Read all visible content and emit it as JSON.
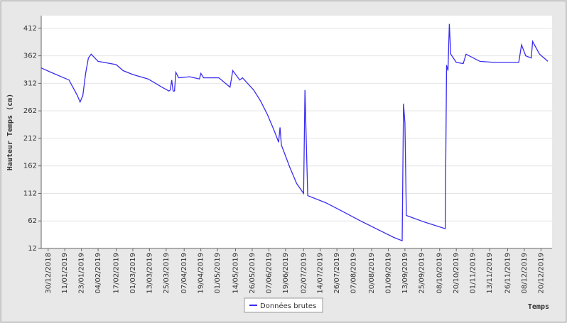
{
  "chart_data": {
    "type": "line",
    "x_label": "Temps",
    "y_label": "Hauteur Temps (cm)",
    "x": [
      "2018-12-25",
      "2019-01-01",
      "2019-01-14",
      "2019-01-20",
      "2019-01-22",
      "2019-01-24",
      "2019-01-26",
      "2019-01-28",
      "2019-01-30",
      "2019-02-04",
      "2019-02-17",
      "2019-02-22",
      "2019-03-01",
      "2019-03-12",
      "2019-03-22",
      "2019-03-27",
      "2019-03-28",
      "2019-03-29",
      "2019-03-30",
      "2019-03-31",
      "2019-04-01",
      "2019-04-03",
      "2019-04-11",
      "2019-04-18",
      "2019-04-19",
      "2019-04-21",
      "2019-05-02",
      "2019-05-10",
      "2019-05-12",
      "2019-05-17",
      "2019-05-19",
      "2019-05-27",
      "2019-06-01",
      "2019-06-06",
      "2019-06-11",
      "2019-06-14",
      "2019-06-15",
      "2019-06-16",
      "2019-06-22",
      "2019-06-27",
      "2019-07-02",
      "2019-07-03",
      "2019-07-04",
      "2019-07-05",
      "2019-07-18",
      "2019-07-28",
      "2019-08-12",
      "2019-08-28",
      "2019-09-05",
      "2019-09-11",
      "2019-09-12",
      "2019-09-13",
      "2019-09-14",
      "2019-09-27",
      "2019-10-12",
      "2019-10-13",
      "2019-10-14",
      "2019-10-15",
      "2019-10-16",
      "2019-10-20",
      "2019-10-25",
      "2019-10-27",
      "2019-11-06",
      "2019-11-16",
      "2019-11-26",
      "2019-12-04",
      "2019-12-06",
      "2019-12-09",
      "2019-12-13",
      "2019-12-14",
      "2019-12-19",
      "2019-12-25"
    ],
    "series": [
      {
        "name": "Données brutes",
        "color": "#3a2cf0",
        "values": [
          340,
          332,
          318,
          290,
          278,
          290,
          330,
          358,
          365,
          352,
          346,
          335,
          328,
          320,
          305,
          298,
          300,
          318,
          298,
          298,
          332,
          322,
          324,
          320,
          330,
          322,
          322,
          305,
          335,
          318,
          322,
          300,
          280,
          255,
          225,
          205,
          232,
          200,
          160,
          130,
          112,
          300,
          200,
          108,
          95,
          82,
          62,
          42,
          32,
          26,
          275,
          240,
          72,
          60,
          48,
          345,
          335,
          420,
          365,
          350,
          348,
          365,
          352,
          350,
          350,
          350,
          382,
          362,
          358,
          388,
          365,
          352
        ]
      }
    ],
    "xlim": [
      "2018-12-25",
      "2019-12-28"
    ],
    "xticks": [
      {
        "value": "2018-12-30",
        "label": "30/12/2018"
      },
      {
        "value": "2019-01-11",
        "label": "11/01/2019"
      },
      {
        "value": "2019-01-23",
        "label": "23/01/2019"
      },
      {
        "value": "2019-02-04",
        "label": "04/02/2019"
      },
      {
        "value": "2019-02-17",
        "label": "17/02/2019"
      },
      {
        "value": "2019-03-01",
        "label": "01/03/2019"
      },
      {
        "value": "2019-03-13",
        "label": "13/03/2019"
      },
      {
        "value": "2019-03-25",
        "label": "25/03/2019"
      },
      {
        "value": "2019-04-07",
        "label": "07/04/2019"
      },
      {
        "value": "2019-04-19",
        "label": "19/04/2019"
      },
      {
        "value": "2019-05-01",
        "label": "01/05/2019"
      },
      {
        "value": "2019-05-14",
        "label": "14/05/2019"
      },
      {
        "value": "2019-05-26",
        "label": "26/05/2019"
      },
      {
        "value": "2019-06-07",
        "label": "07/06/2019"
      },
      {
        "value": "2019-06-19",
        "label": "19/06/2019"
      },
      {
        "value": "2019-07-02",
        "label": "02/07/2019"
      },
      {
        "value": "2019-07-14",
        "label": "14/07/2019"
      },
      {
        "value": "2019-07-26",
        "label": "26/07/2019"
      },
      {
        "value": "2019-08-07",
        "label": "07/08/2019"
      },
      {
        "value": "2019-08-20",
        "label": "20/08/2019"
      },
      {
        "value": "2019-09-01",
        "label": "01/09/2019"
      },
      {
        "value": "2019-09-13",
        "label": "13/09/2019"
      },
      {
        "value": "2019-09-25",
        "label": "25/09/2019"
      },
      {
        "value": "2019-10-08",
        "label": "08/10/2019"
      },
      {
        "value": "2019-10-20",
        "label": "20/10/2019"
      },
      {
        "value": "2019-11-01",
        "label": "01/11/2019"
      },
      {
        "value": "2019-11-13",
        "label": "13/11/2019"
      },
      {
        "value": "2019-11-26",
        "label": "26/11/2019"
      },
      {
        "value": "2019-12-08",
        "label": "08/12/2019"
      },
      {
        "value": "2019-12-20",
        "label": "20/12/2019"
      }
    ],
    "ylim": [
      12,
      435
    ],
    "yticks": [
      12,
      62,
      112,
      162,
      212,
      262,
      312,
      362,
      412
    ],
    "grid": true
  }
}
